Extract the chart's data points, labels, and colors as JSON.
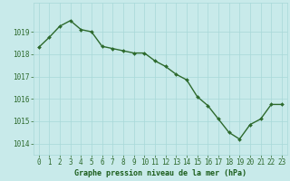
{
  "x": [
    0,
    1,
    2,
    3,
    4,
    5,
    6,
    7,
    8,
    9,
    10,
    11,
    12,
    13,
    14,
    15,
    16,
    17,
    18,
    19,
    20,
    21,
    22,
    23
  ],
  "y": [
    1018.3,
    1018.75,
    1019.25,
    1019.5,
    1019.1,
    1019.0,
    1018.35,
    1018.25,
    1018.15,
    1018.05,
    1018.05,
    1017.7,
    1017.45,
    1017.1,
    1016.85,
    1016.1,
    1015.7,
    1015.1,
    1014.5,
    1014.2,
    1014.85,
    1015.1,
    1015.75,
    1015.75
  ],
  "line_color": "#2d6a2d",
  "marker": "D",
  "marker_size": 2.0,
  "line_width": 1.0,
  "bg_color": "#c8eaea",
  "grid_color": "#a8d8d8",
  "xlabel": "Graphe pression niveau de la mer (hPa)",
  "xlabel_fontsize": 6.0,
  "xlabel_color": "#1a5c1a",
  "tick_label_color": "#2d6a2d",
  "tick_fontsize": 5.5,
  "ylim": [
    1013.5,
    1020.3
  ],
  "xlim": [
    -0.5,
    23.5
  ],
  "yticks": [
    1014,
    1015,
    1016,
    1017,
    1018,
    1019
  ],
  "xtick_labels": [
    "0",
    "1",
    "2",
    "3",
    "4",
    "5",
    "6",
    "7",
    "8",
    "9",
    "10",
    "11",
    "12",
    "13",
    "14",
    "15",
    "16",
    "17",
    "18",
    "19",
    "20",
    "21",
    "22",
    "23"
  ]
}
